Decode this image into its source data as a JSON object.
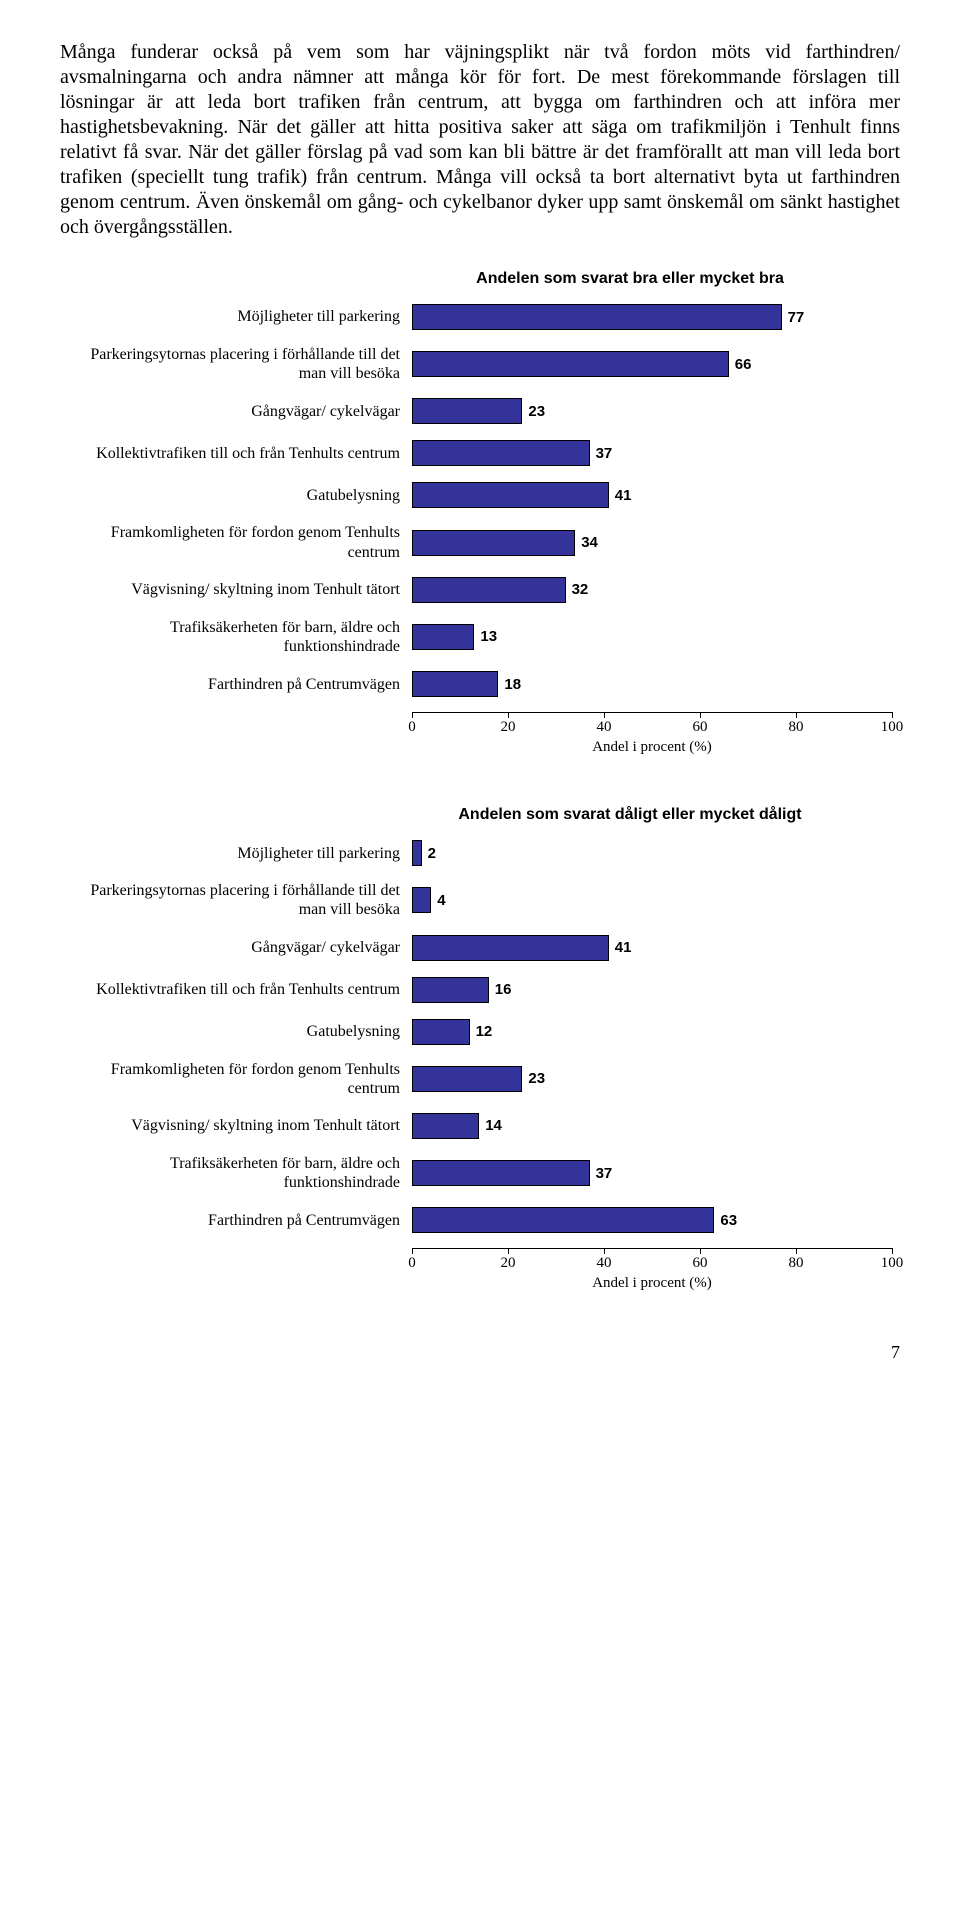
{
  "paragraph": "Många funderar också på vem som har väjningsplikt när två fordon möts vid farthindren/ avsmalningarna och andra nämner att många kör för fort. De mest förekommande förslagen till lösningar är att leda bort trafiken från centrum, att bygga om farthindren och att införa mer hastighetsbevakning. När det gäller att hitta positiva saker att säga om trafikmiljön i Tenhult finns relativt få svar. När det gäller förslag på vad som kan bli bättre är det framförallt att man vill leda bort trafiken (speciellt tung trafik) från centrum. Många vill också ta bort alternativt byta ut farthindren genom centrum. Även önskemål om gång- och cykelbanor dyker upp samt önskemål om sänkt hastighet och övergångsställen.",
  "chart1": {
    "title": "Andelen som svarat bra eller mycket bra",
    "axis_label": "Andel i procent (%)",
    "xmax": 100,
    "ticks": [
      0,
      20,
      40,
      60,
      80,
      100
    ],
    "bar_fill": "#333399",
    "bar_border": "#000000",
    "items": [
      {
        "label": "Möjligheter till parkering",
        "value": 77
      },
      {
        "label": "Parkeringsytornas placering i förhållande till det man vill besöka",
        "value": 66
      },
      {
        "label": "Gångvägar/ cykelvägar",
        "value": 23
      },
      {
        "label": "Kollektivtrafiken till och från Tenhults centrum",
        "value": 37
      },
      {
        "label": "Gatubelysning",
        "value": 41
      },
      {
        "label": "Framkomligheten för fordon genom Tenhults centrum",
        "value": 34
      },
      {
        "label": "Vägvisning/ skyltning inom Tenhult tätort",
        "value": 32
      },
      {
        "label": "Trafiksäkerheten för barn, äldre och funktionshindrade",
        "value": 13
      },
      {
        "label": "Farthindren på Centrumvägen",
        "value": 18
      }
    ]
  },
  "chart2": {
    "title": "Andelen som svarat dåligt eller mycket dåligt",
    "axis_label": "Andel i procent (%)",
    "xmax": 100,
    "ticks": [
      0,
      20,
      40,
      60,
      80,
      100
    ],
    "bar_fill": "#333399",
    "bar_border": "#000000",
    "items": [
      {
        "label": "Möjligheter till parkering",
        "value": 2
      },
      {
        "label": "Parkeringsytornas placering i förhållande till det man vill besöka",
        "value": 4
      },
      {
        "label": "Gångvägar/ cykelvägar",
        "value": 41
      },
      {
        "label": "Kollektivtrafiken till och från Tenhults centrum",
        "value": 16
      },
      {
        "label": "Gatubelysning",
        "value": 12
      },
      {
        "label": "Framkomligheten för fordon genom Tenhults centrum",
        "value": 23
      },
      {
        "label": "Vägvisning/ skyltning inom Tenhult tätort",
        "value": 14
      },
      {
        "label": "Trafiksäkerheten för barn, äldre och funktionshindrade",
        "value": 37
      },
      {
        "label": "Farthindren på Centrumvägen",
        "value": 63
      }
    ]
  },
  "page_number": "7"
}
